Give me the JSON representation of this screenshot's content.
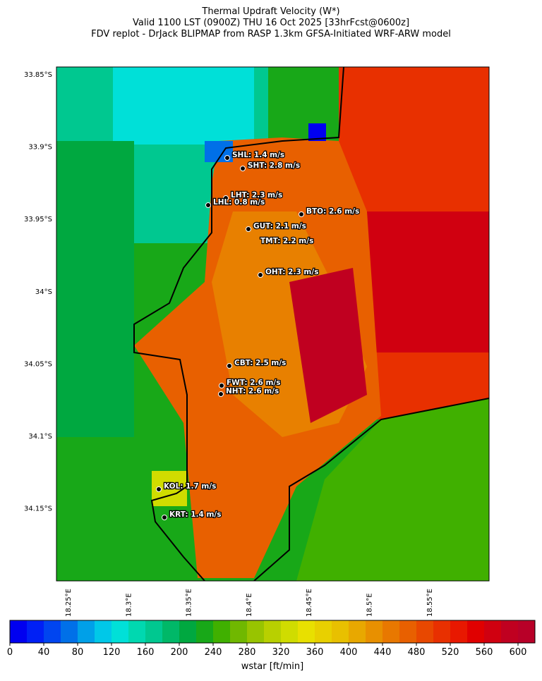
{
  "header": {
    "title": [
      "Thermal Updraft Velocity (W*)",
      "Valid 1100 LST (0900Z) THU 16 Oct 2025 [33hrFcst@0600z]",
      "FDV replot - DrJack BLIPMAP from RASP 1.3km GFSA-Initiated WRF-ARW model"
    ]
  },
  "map": {
    "lat_labels": [
      "33.85°S",
      "33.9°S",
      "33.95°S",
      "34°S",
      "34.05°S",
      "34.1°S",
      "34.15°S"
    ],
    "lon_labels": [
      "18.25°E",
      "18.3°E",
      "18.35°E",
      "18.4°E",
      "18.45°E",
      "18.5°E",
      "18.55°E"
    ],
    "stations": [
      "SHL: 1.4 m/s",
      "SHT: 2.8 m/s",
      "LHT: 2.3 m/s",
      "LHL: 0.8 m/s",
      "BTO: 2.6 m/s",
      "GUT: 2.1 m/s",
      "TMT: 2.2 m/s",
      "OHT: 2.3 m/s",
      "CBT: 2.5 m/s",
      "FWT: 2.6 m/s",
      "NHT: 2.6 m/s",
      "KOL: 1.7 m/s",
      "KRT: 1.4 m/s"
    ]
  },
  "colorbar": {
    "label": "wstar [ft/min]",
    "lim": [
      0,
      620
    ],
    "ticks": [
      0,
      40,
      80,
      120,
      160,
      200,
      240,
      280,
      320,
      360,
      400,
      440,
      480,
      520,
      560,
      600
    ],
    "colors": [
      "#0000f0",
      "#0020f5",
      "#0045f0",
      "#0070e8",
      "#00a0e8",
      "#00c8e8",
      "#00e0d8",
      "#00d8b0",
      "#00c890",
      "#00b868",
      "#00a840",
      "#18a818",
      "#40b000",
      "#70b800",
      "#98c400",
      "#b8d000",
      "#d0dc00",
      "#e8e000",
      "#e8d000",
      "#e8c000",
      "#e8a800",
      "#e89000",
      "#e87800",
      "#e86000",
      "#e84800",
      "#e83000",
      "#e81800",
      "#e00000",
      "#d00010",
      "#c00020",
      "#b80028"
    ]
  }
}
